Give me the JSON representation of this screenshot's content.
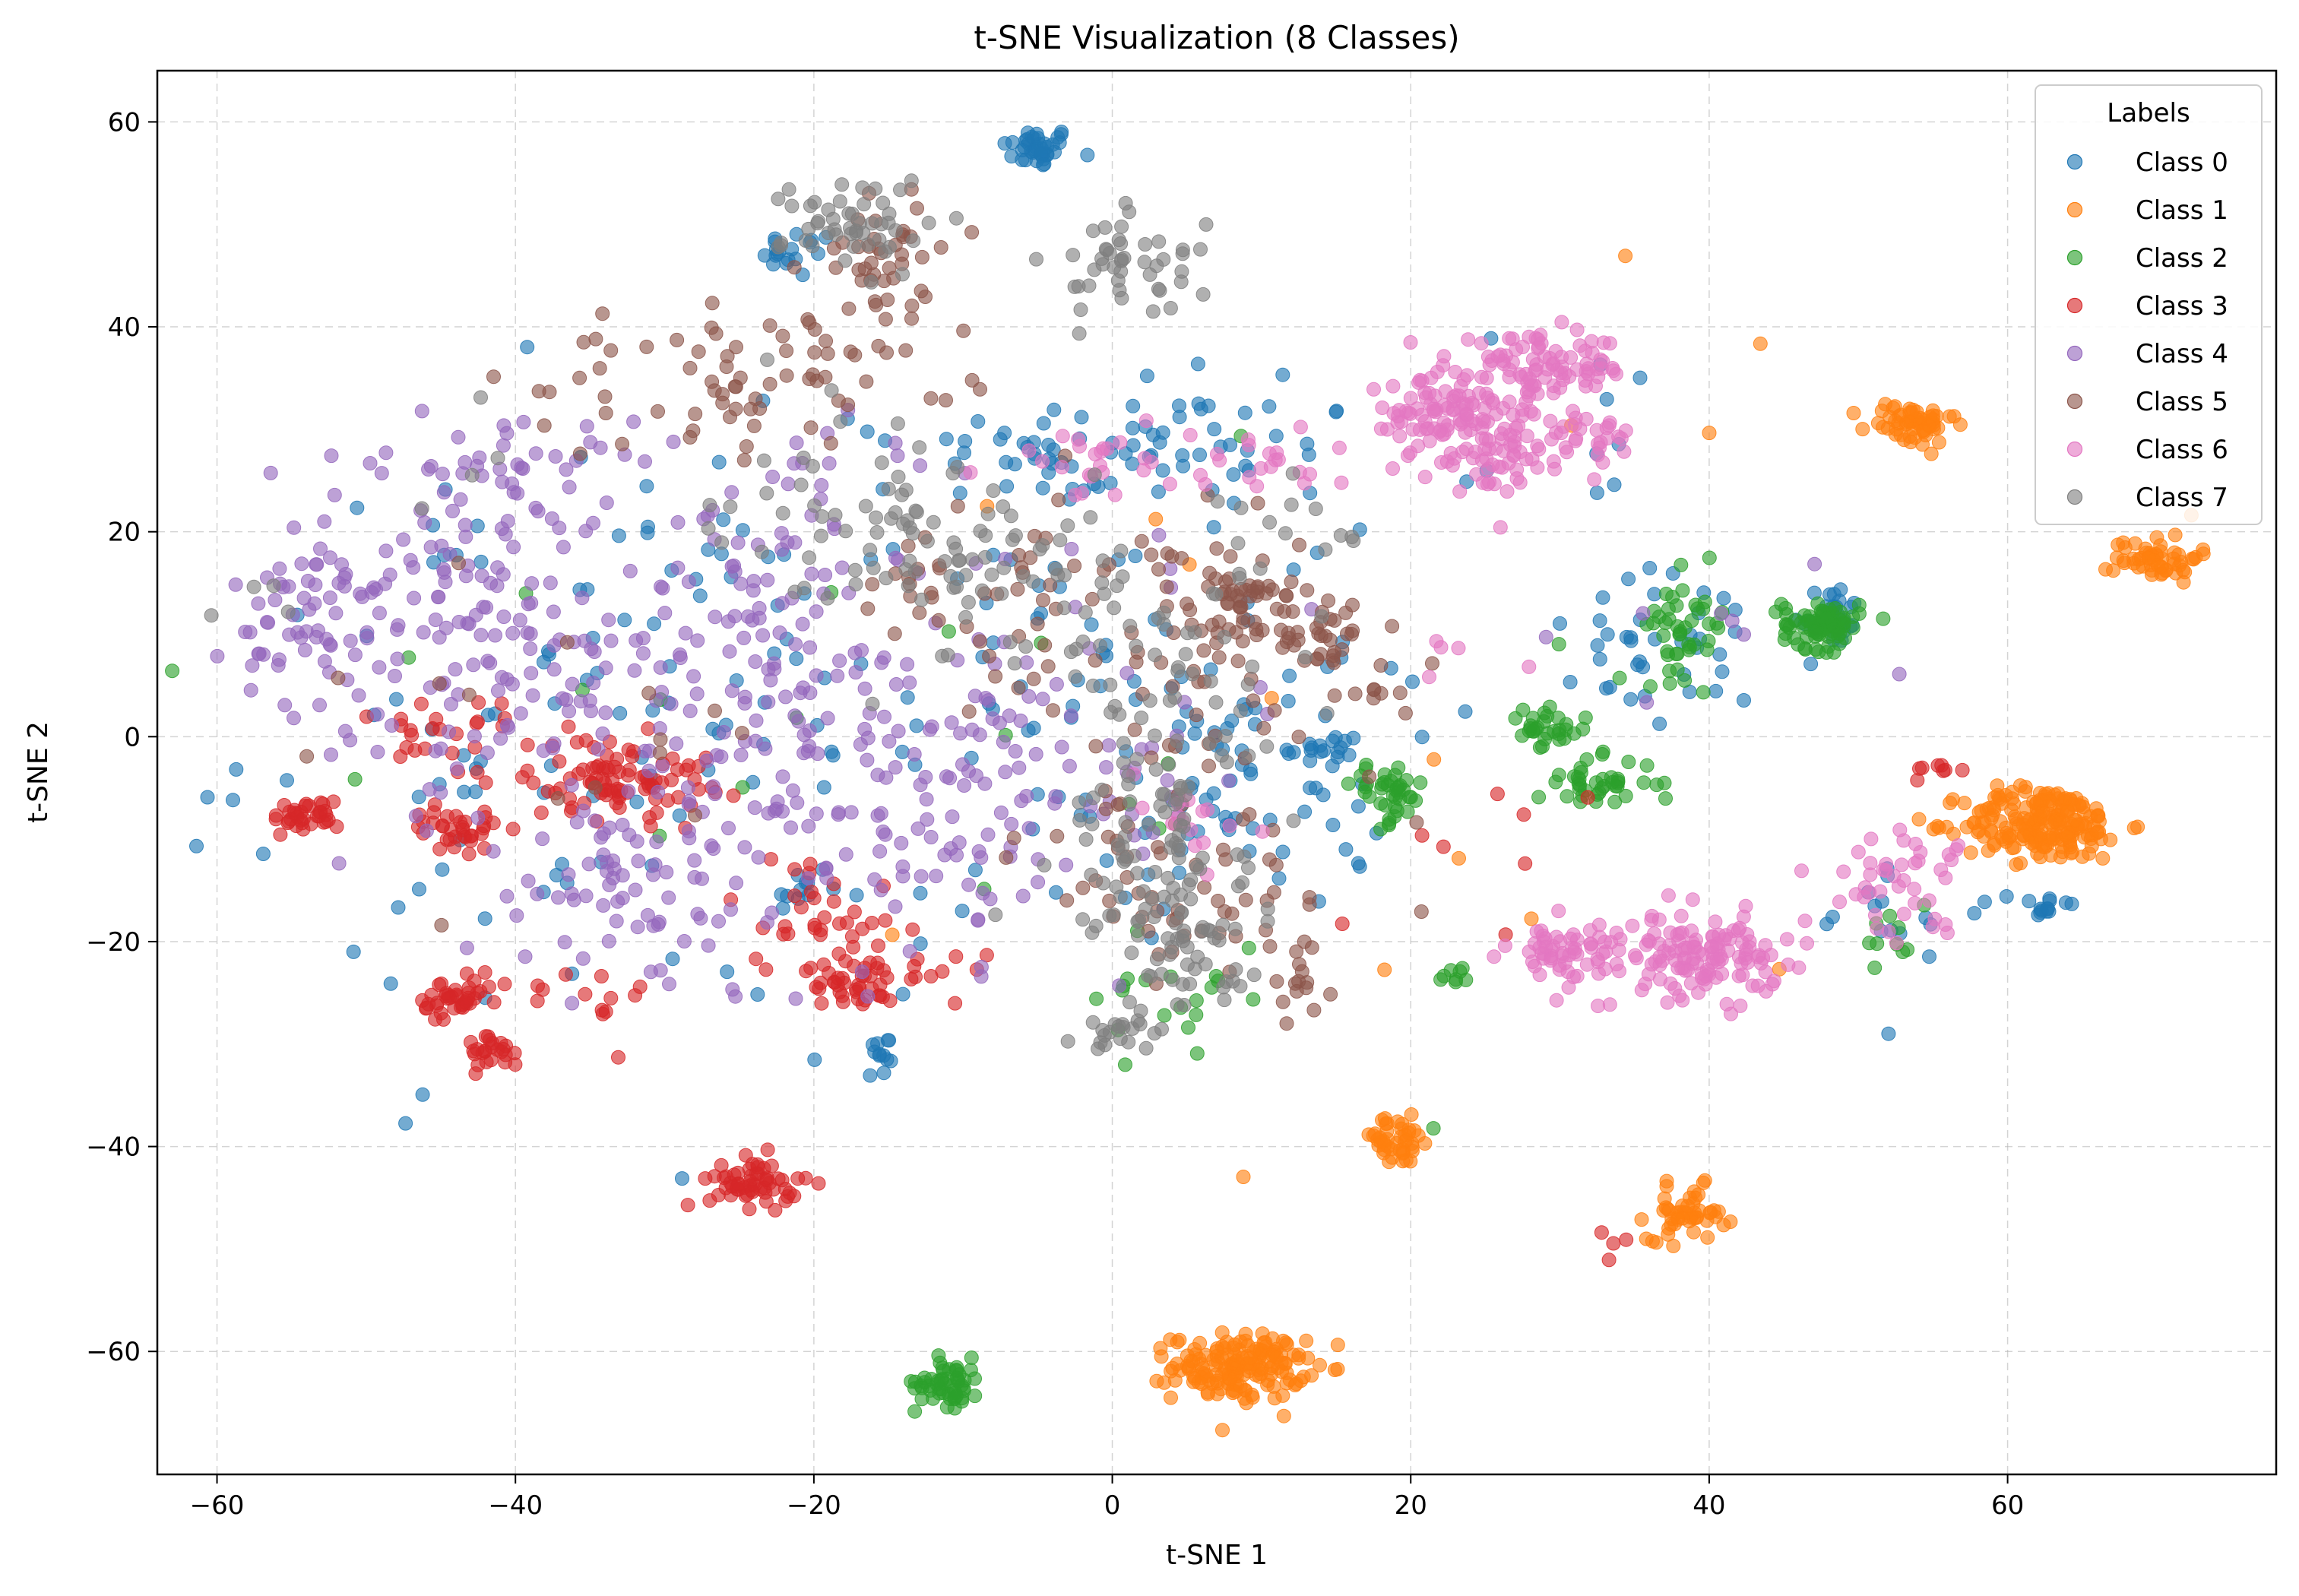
{
  "chart_data": {
    "type": "scatter",
    "title": "t-SNE Visualization (8 Classes)",
    "xlabel": "t-SNE 1",
    "ylabel": "t-SNE 2",
    "xlim": [
      -64,
      78
    ],
    "ylim": [
      -72,
      65
    ],
    "xticks": [
      -60,
      -40,
      -20,
      0,
      20,
      40,
      60
    ],
    "yticks": [
      -60,
      -40,
      -20,
      0,
      20,
      40,
      60
    ],
    "xtick_labels": [
      "−60",
      "−40",
      "−20",
      "0",
      "20",
      "40",
      "60"
    ],
    "ytick_labels": [
      "−60",
      "−40",
      "−20",
      "0",
      "20",
      "40",
      "60"
    ],
    "grid": true,
    "legend": {
      "title": "Labels",
      "placement": "top-right"
    },
    "series": [
      {
        "name": "Class 0",
        "color": "#1f77b4",
        "clusters": [
          {
            "cx": -5,
            "cy": 57.5,
            "sx": 1.2,
            "sy": 1.0,
            "n": 40
          },
          {
            "cx": -21,
            "cy": 47,
            "sx": 1.2,
            "sy": 1.2,
            "n": 18
          },
          {
            "cx": 48,
            "cy": 12,
            "sx": 1.2,
            "sy": 1.5,
            "n": 25
          },
          {
            "cx": 62.5,
            "cy": -16.5,
            "sx": 1.0,
            "sy": 0.8,
            "n": 15
          },
          {
            "cx": -15.5,
            "cy": -31,
            "sx": 0.6,
            "sy": 1.5,
            "n": 12
          },
          {
            "cx": -21,
            "cy": -15,
            "sx": 1.0,
            "sy": 1.0,
            "n": 10
          },
          {
            "cx": 14,
            "cy": -1.5,
            "sx": 1.5,
            "sy": 1.0,
            "n": 15
          },
          {
            "cx": 2,
            "cy": 28,
            "sx": 8,
            "sy": 3,
            "n": 70
          },
          {
            "cx": -5,
            "cy": 5,
            "sx": 12,
            "sy": 13,
            "n": 110
          },
          {
            "cx": 9,
            "cy": -5,
            "sx": 5,
            "sy": 6,
            "n": 55
          },
          {
            "cx": -38,
            "cy": 0,
            "sx": 10,
            "sy": 15,
            "n": 90
          },
          {
            "cx": 38,
            "cy": 8,
            "sx": 5,
            "sy": 4,
            "n": 40
          },
          {
            "cx": 52,
            "cy": -18,
            "sx": 3,
            "sy": 4,
            "n": 15
          },
          {
            "cx": 32,
            "cy": 30,
            "sx": 4,
            "sy": 5,
            "n": 10
          }
        ]
      },
      {
        "name": "Class 1",
        "color": "#ff7f0e",
        "clusters": [
          {
            "cx": 8.5,
            "cy": -61.5,
            "sx": 2.2,
            "sy": 1.6,
            "n": 170
          },
          {
            "cx": 19,
            "cy": -39.5,
            "sx": 1.4,
            "sy": 1.2,
            "n": 45
          },
          {
            "cx": 38.5,
            "cy": -46.5,
            "sx": 1.3,
            "sy": 1.3,
            "n": 50
          },
          {
            "cx": 53.5,
            "cy": 30.5,
            "sx": 1.5,
            "sy": 1.1,
            "n": 60
          },
          {
            "cx": 70,
            "cy": 17.5,
            "sx": 1.4,
            "sy": 1.2,
            "n": 55
          },
          {
            "cx": 62.5,
            "cy": -8.5,
            "sx": 2.7,
            "sy": 1.8,
            "n": 210
          },
          {
            "cx": 20,
            "cy": 5,
            "sx": 20,
            "sy": 25,
            "n": 15
          }
        ]
      },
      {
        "name": "Class 2",
        "color": "#2ca02c",
        "clusters": [
          {
            "cx": -11,
            "cy": -63,
            "sx": 1.1,
            "sy": 1.2,
            "n": 55
          },
          {
            "cx": 47.5,
            "cy": 11,
            "sx": 1.3,
            "sy": 1.2,
            "n": 80
          },
          {
            "cx": 38.5,
            "cy": 11,
            "sx": 1.4,
            "sy": 2.5,
            "n": 45
          },
          {
            "cx": 29,
            "cy": 0.5,
            "sx": 1.4,
            "sy": 1.0,
            "n": 30
          },
          {
            "cx": 32.5,
            "cy": -4.5,
            "sx": 2.0,
            "sy": 1.2,
            "n": 40
          },
          {
            "cx": 18.5,
            "cy": -5.5,
            "sx": 1.2,
            "sy": 1.5,
            "n": 40
          },
          {
            "cx": 23,
            "cy": -23.5,
            "sx": 0.6,
            "sy": 0.5,
            "n": 8
          },
          {
            "cx": 5,
            "cy": -25,
            "sx": 3,
            "sy": 4,
            "n": 20
          },
          {
            "cx": 52,
            "cy": -19,
            "sx": 1.5,
            "sy": 2,
            "n": 10
          },
          {
            "cx": -20,
            "cy": 5,
            "sx": 20,
            "sy": 15,
            "n": 20
          }
        ]
      },
      {
        "name": "Class 3",
        "color": "#d62728",
        "clusters": [
          {
            "cx": -24,
            "cy": -43.5,
            "sx": 1.5,
            "sy": 1.2,
            "n": 60
          },
          {
            "cx": -44,
            "cy": -26,
            "sx": 1.3,
            "sy": 1.2,
            "n": 40
          },
          {
            "cx": -41.5,
            "cy": -30.5,
            "sx": 1.0,
            "sy": 0.9,
            "n": 25
          },
          {
            "cx": -54,
            "cy": -7.8,
            "sx": 1.1,
            "sy": 0.8,
            "n": 35
          },
          {
            "cx": -44,
            "cy": -9,
            "sx": 1.5,
            "sy": 1.0,
            "n": 35
          },
          {
            "cx": -33,
            "cy": -4,
            "sx": 3.0,
            "sy": 2.0,
            "n": 90
          },
          {
            "cx": -17.5,
            "cy": -24,
            "sx": 1.5,
            "sy": 1.2,
            "n": 40
          },
          {
            "cx": -20,
            "cy": -17,
            "sx": 3,
            "sy": 3,
            "n": 35
          },
          {
            "cx": -44,
            "cy": 0,
            "sx": 3,
            "sy": 3,
            "n": 25
          },
          {
            "cx": -37,
            "cy": -26,
            "sx": 3,
            "sy": 2,
            "n": 15
          },
          {
            "cx": -10,
            "cy": -22,
            "sx": 2,
            "sy": 2,
            "n": 10
          },
          {
            "cx": 55,
            "cy": -3.5,
            "sx": 0.8,
            "sy": 0.8,
            "n": 8
          },
          {
            "cx": 34,
            "cy": -49.5,
            "sx": 0.6,
            "sy": 0.6,
            "n": 4
          },
          {
            "cx": 25,
            "cy": -12,
            "sx": 5,
            "sy": 6,
            "n": 8
          }
        ]
      },
      {
        "name": "Class 4",
        "color": "#9467bd",
        "clusters": [
          {
            "cx": -53,
            "cy": 12,
            "sx": 3,
            "sy": 5,
            "n": 70
          },
          {
            "cx": -42,
            "cy": 12,
            "sx": 6,
            "sy": 8,
            "n": 110
          },
          {
            "cx": -25,
            "cy": 5,
            "sx": 10,
            "sy": 10,
            "n": 170
          },
          {
            "cx": -12,
            "cy": -5,
            "sx": 7,
            "sy": 8,
            "n": 110
          },
          {
            "cx": -32,
            "cy": -15,
            "sx": 6,
            "sy": 6,
            "n": 70
          },
          {
            "cx": -40,
            "cy": 27,
            "sx": 4,
            "sy": 2,
            "n": 30
          },
          {
            "cx": -22,
            "cy": 25,
            "sx": 4,
            "sy": 4,
            "n": 20
          },
          {
            "cx": 0,
            "cy": 0,
            "sx": 6,
            "sy": 10,
            "n": 25
          },
          {
            "cx": 40,
            "cy": 8,
            "sx": 8,
            "sy": 6,
            "n": 8
          }
        ]
      },
      {
        "name": "Class 5",
        "color": "#8c564b",
        "clusters": [
          {
            "cx": -15,
            "cy": 47,
            "sx": 2.5,
            "sy": 3,
            "n": 40
          },
          {
            "cx": -22,
            "cy": 36,
            "sx": 6,
            "sy": 3,
            "n": 55
          },
          {
            "cx": 8,
            "cy": 10,
            "sx": 6,
            "sy": 5,
            "n": 70
          },
          {
            "cx": 6,
            "cy": -12,
            "sx": 6,
            "sy": 7,
            "n": 70
          },
          {
            "cx": -4,
            "cy": 12,
            "sx": 5,
            "sy": 6,
            "n": 40
          },
          {
            "cx": 14,
            "cy": 10.5,
            "sx": 2,
            "sy": 1.5,
            "n": 25
          },
          {
            "cx": 12.5,
            "cy": -24,
            "sx": 1,
            "sy": 1.5,
            "n": 15
          },
          {
            "cx": -14,
            "cy": 14,
            "sx": 2,
            "sy": 3,
            "n": 15
          },
          {
            "cx": -34,
            "cy": 33,
            "sx": 6,
            "sy": 3,
            "n": 20
          },
          {
            "cx": 10,
            "cy": 14,
            "sx": 2,
            "sy": 1,
            "n": 20
          },
          {
            "cx": 18,
            "cy": 4,
            "sx": 1,
            "sy": 0.5,
            "n": 6
          },
          {
            "cx": -40,
            "cy": 0,
            "sx": 10,
            "sy": 10,
            "n": 15
          }
        ]
      },
      {
        "name": "Class 6",
        "color": "#e377c2",
        "clusters": [
          {
            "cx": 29,
            "cy": 36,
            "sx": 3,
            "sy": 1.5,
            "n": 85
          },
          {
            "cx": 21.5,
            "cy": 32,
            "sx": 1.5,
            "sy": 2,
            "n": 60
          },
          {
            "cx": 25.5,
            "cy": 29,
            "sx": 2.5,
            "sy": 2.5,
            "n": 95
          },
          {
            "cx": 31.5,
            "cy": 29,
            "sx": 2,
            "sy": 1.5,
            "n": 30
          },
          {
            "cx": 39.5,
            "cy": -21.5,
            "sx": 2.5,
            "sy": 2.0,
            "n": 130
          },
          {
            "cx": 30.5,
            "cy": -21,
            "sx": 2,
            "sy": 1.5,
            "n": 60
          },
          {
            "cx": 52.5,
            "cy": -14,
            "sx": 2.5,
            "sy": 2.5,
            "n": 45
          },
          {
            "cx": -2,
            "cy": 27,
            "sx": 4,
            "sy": 2,
            "n": 25
          },
          {
            "cx": 10,
            "cy": 27,
            "sx": 3,
            "sy": 2,
            "n": 20
          },
          {
            "cx": 5,
            "cy": -7,
            "sx": 2,
            "sy": 2,
            "n": 15
          },
          {
            "cx": 24,
            "cy": 8,
            "sx": 2,
            "sy": 3,
            "n": 5
          }
        ]
      },
      {
        "name": "Class 7",
        "color": "#7f7f7f",
        "clusters": [
          {
            "cx": -17,
            "cy": 50,
            "sx": 2.5,
            "sy": 2.5,
            "n": 50
          },
          {
            "cx": 1,
            "cy": 46,
            "sx": 2.5,
            "sy": 2.5,
            "n": 45
          },
          {
            "cx": -9,
            "cy": 17,
            "sx": 5,
            "sy": 5,
            "n": 80
          },
          {
            "cx": 3,
            "cy": -10,
            "sx": 3,
            "sy": 5,
            "n": 70
          },
          {
            "cx": 5,
            "cy": -21,
            "sx": 3,
            "sy": 3,
            "n": 55
          },
          {
            "cx": 1,
            "cy": -28.5,
            "sx": 1.5,
            "sy": 1,
            "n": 20
          },
          {
            "cx": 4,
            "cy": 5,
            "sx": 5,
            "sy": 5,
            "n": 45
          },
          {
            "cx": -20,
            "cy": 23,
            "sx": 5,
            "sy": 5,
            "n": 25
          },
          {
            "cx": -57,
            "cy": 12,
            "sx": 1.5,
            "sy": 2,
            "n": 4
          },
          {
            "cx": 10,
            "cy": 20,
            "sx": 3,
            "sy": 3,
            "n": 15
          },
          {
            "cx": -43,
            "cy": 26,
            "sx": 2,
            "sy": 3,
            "n": 4
          }
        ]
      }
    ]
  }
}
